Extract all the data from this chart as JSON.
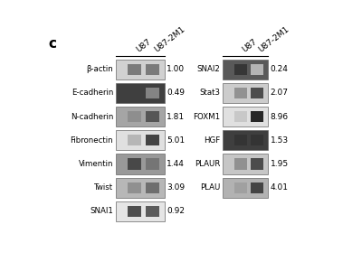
{
  "panel_label": "c",
  "left_column": {
    "headers": [
      "U87",
      "U87-2M1"
    ],
    "rows": [
      {
        "label": "β-actin",
        "value": "1.00",
        "lane1_shade": 0.45,
        "lane2_shade": 0.45,
        "bg": 0.82
      },
      {
        "label": "E-cadherin",
        "value": "0.49",
        "lane1_shade": 0.25,
        "lane2_shade": 0.55,
        "bg": 0.25
      },
      {
        "label": "N-cadherin",
        "value": "1.81",
        "lane1_shade": 0.55,
        "lane2_shade": 0.3,
        "bg": 0.65
      },
      {
        "label": "Fibronectin",
        "value": "5.01",
        "lane1_shade": 0.7,
        "lane2_shade": 0.2,
        "bg": 0.88
      },
      {
        "label": "Vimentin",
        "value": "1.44",
        "lane1_shade": 0.25,
        "lane2_shade": 0.45,
        "bg": 0.6
      },
      {
        "label": "Twist",
        "value": "3.09",
        "lane1_shade": 0.55,
        "lane2_shade": 0.4,
        "bg": 0.72
      },
      {
        "label": "SNAI1",
        "value": "0.92",
        "lane1_shade": 0.25,
        "lane2_shade": 0.3,
        "bg": 0.9
      }
    ]
  },
  "right_column": {
    "headers": [
      "U87",
      "U87-2M1"
    ],
    "rows": [
      {
        "label": "SNAI2",
        "value": "0.24",
        "lane1_shade": 0.2,
        "lane2_shade": 0.75,
        "bg": 0.35
      },
      {
        "label": "Stat3",
        "value": "2.07",
        "lane1_shade": 0.55,
        "lane2_shade": 0.25,
        "bg": 0.8
      },
      {
        "label": "FOXM1",
        "value": "8.96",
        "lane1_shade": 0.78,
        "lane2_shade": 0.08,
        "bg": 0.88
      },
      {
        "label": "HGF",
        "value": "1.53",
        "lane1_shade": 0.2,
        "lane2_shade": 0.2,
        "bg": 0.25
      },
      {
        "label": "PLAUR",
        "value": "1.95",
        "lane1_shade": 0.55,
        "lane2_shade": 0.25,
        "bg": 0.78
      },
      {
        "label": "PLAU",
        "value": "4.01",
        "lane1_shade": 0.62,
        "lane2_shade": 0.22,
        "bg": 0.7
      }
    ]
  },
  "background_color": "#ffffff",
  "text_color": "#000000"
}
